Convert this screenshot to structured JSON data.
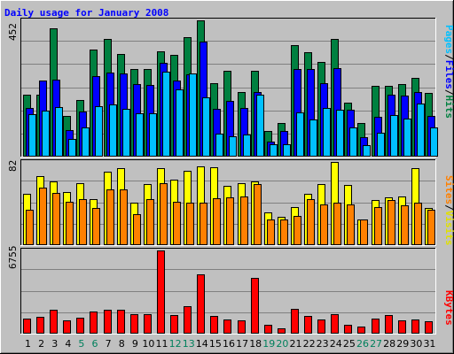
{
  "chart_data": {
    "type": "bar",
    "title": "Daily usage for January 2008",
    "categories": [
      "1",
      "2",
      "3",
      "4",
      "5",
      "6",
      "7",
      "8",
      "9",
      "10",
      "11",
      "12",
      "13",
      "14",
      "15",
      "16",
      "17",
      "18",
      "19",
      "20",
      "21",
      "22",
      "23",
      "24",
      "25",
      "26",
      "27",
      "28",
      "29",
      "30",
      "31"
    ],
    "weekend_days": [
      5,
      6,
      12,
      13,
      19,
      20,
      26,
      27
    ],
    "panels": [
      {
        "id": "hits-files-pages",
        "ymax_label": "452",
        "ymax": 452,
        "series": [
          {
            "name": "Hits",
            "color": "#008040",
            "values": [
              205,
              205,
              425,
              134,
              185,
              354,
              390,
              340,
              290,
              290,
              350,
              338,
              395,
              451,
              241,
              284,
              214,
              284,
              84,
              110,
              369,
              346,
              312,
              391,
              176,
              108,
              233,
              232,
              238,
              260,
              211
            ]
          },
          {
            "name": "Files",
            "color": "#0000ff",
            "values": [
              161,
              252,
              253,
              86,
              148,
              265,
              279,
              274,
              240,
              236,
              310,
              252,
              272,
              380,
              156,
              183,
              160,
              213,
              48,
              83,
              289,
              290,
              242,
              292,
              153,
              62,
              130,
              203,
              200,
              212,
              132
            ]
          },
          {
            "name": "Pages",
            "color": "#00c0ff",
            "values": [
              138,
              150,
              162,
              55,
              94,
              166,
              172,
              158,
              142,
              142,
              280,
              223,
              274,
              195,
              73,
              65,
              70,
              203,
              39,
              38,
              145,
              120,
              159,
              153,
              96,
              35,
              76,
              136,
              125,
              174,
              95
            ]
          }
        ]
      },
      {
        "id": "visits-sites",
        "ymax_label": "82",
        "ymax": 82,
        "series": [
          {
            "name": "Visits",
            "color": "#ffff00",
            "values": [
              50,
              68,
              63,
              52,
              61,
              45,
              72,
              76,
              41,
              60,
              76,
              64,
              73,
              78,
              77,
              58,
              61,
              63,
              32,
              27,
              37,
              50,
              60,
              82,
              59,
              25,
              44,
              47,
              48,
              76,
              36
            ]
          },
          {
            "name": "Sites",
            "color": "#ff8000",
            "values": [
              34,
              56,
              51,
              42,
              45,
              36,
              55,
              55,
              30,
              45,
              61,
              42,
              41,
              41,
              46,
              47,
              48,
              60,
              25,
              25,
              28,
              45,
              40,
              41,
              40,
              25,
              37,
              44,
              39,
              41,
              34
            ]
          }
        ]
      },
      {
        "id": "kbytes",
        "ymax_label": "6755",
        "ymax": 6755,
        "series": [
          {
            "name": "KBytes",
            "color": "#ff0000",
            "values": [
              1130,
              1340,
              1880,
              1020,
              1250,
              1760,
              1900,
              1880,
              1520,
              1500,
              6740,
              1420,
              2190,
              4780,
              1390,
              1070,
              1050,
              4490,
              650,
              380,
              1980,
              1360,
              1100,
              1490,
              660,
              480,
              1180,
              1420,
              1030,
              1080,
              980
            ]
          }
        ]
      }
    ]
  },
  "legend": {
    "panel1": {
      "pages": "Pages",
      "sep1": "/",
      "files": "Files",
      "sep2": "/",
      "hits": "Hits"
    },
    "panel2": {
      "sites": "Sites",
      "sep1": "/",
      "visits": "Visits"
    },
    "panel3": {
      "kbytes": "KBytes"
    }
  },
  "colors": {
    "background": "#c0c0c0",
    "title": "#0000ff",
    "axis_label": "#000000",
    "weekday_label": "#000000",
    "weekend_label": "#00805c",
    "grid": "#808080",
    "hits_label": "#008040",
    "files_label": "#0000ff",
    "pages_label": "#00c0ff",
    "visits_label": "#e0e000",
    "sites_label": "#ff8000",
    "kbytes_label": "#ff0000"
  }
}
